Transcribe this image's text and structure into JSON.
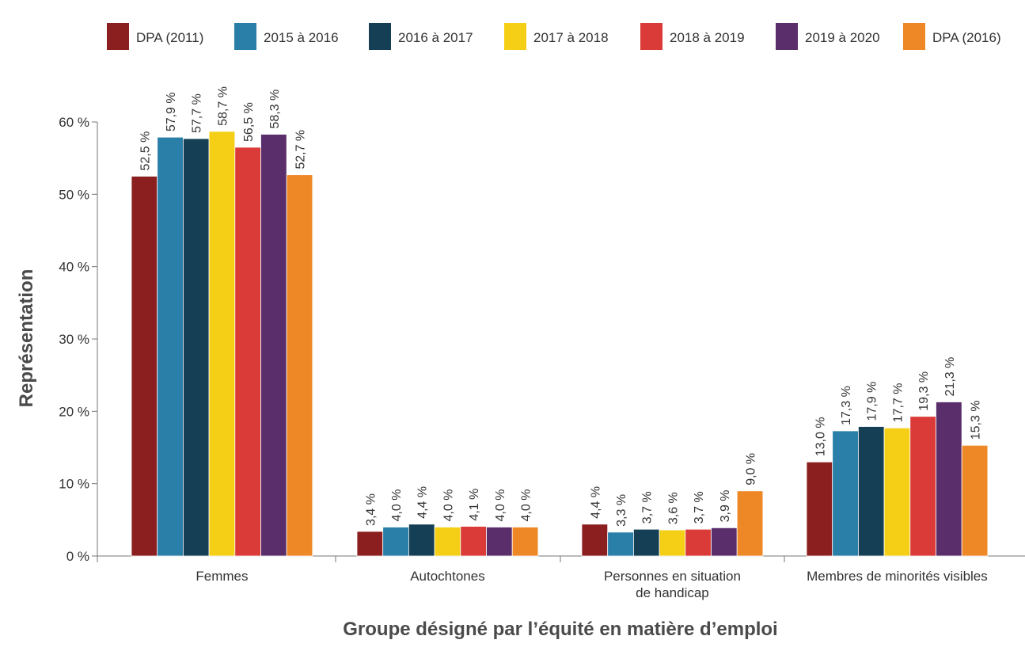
{
  "chart_data": {
    "type": "bar",
    "title": "",
    "xlabel": "Groupe désigné par l’équité en matière d’emploi",
    "ylabel": "Représentation",
    "ylim": [
      0,
      60
    ],
    "yticks": [
      0,
      10,
      20,
      30,
      40,
      50,
      60
    ],
    "ytick_labels": [
      "0 %",
      "10 %",
      "20 %",
      "30 %",
      "40 %",
      "50 %",
      "60 %"
    ],
    "grid": false,
    "legend_position": "top",
    "categories": [
      [
        "Femmes"
      ],
      [
        "Autochtones"
      ],
      [
        "Personnes en situation",
        "de handicap"
      ],
      [
        "Membres de minorités visibles"
      ]
    ],
    "series": [
      {
        "name": "DPA (2011)",
        "color": "#8b1e1e",
        "values": [
          52.5,
          3.4,
          4.4,
          13.0
        ],
        "labels": [
          "52,5 %",
          "3,4 %",
          "4,4 %",
          "13,0 %"
        ]
      },
      {
        "name": "2015 à 2016",
        "color": "#2a7fa9",
        "values": [
          57.9,
          4.0,
          3.3,
          17.3
        ],
        "labels": [
          "57,9 %",
          "4,0 %",
          "3,3 %",
          "17,3 %"
        ]
      },
      {
        "name": "2016 à 2017",
        "color": "#143f55",
        "values": [
          57.7,
          4.4,
          3.7,
          17.9
        ],
        "labels": [
          "57,7 %",
          "4,4 %",
          "3,7 %",
          "17,9 %"
        ]
      },
      {
        "name": "2017 à 2018",
        "color": "#f4cf16",
        "values": [
          58.7,
          4.0,
          3.6,
          17.7
        ],
        "labels": [
          "58,7 %",
          "4,0 %",
          "3,6 %",
          "17,7 %"
        ]
      },
      {
        "name": "2018 à 2019",
        "color": "#da3b38",
        "values": [
          56.5,
          4.1,
          3.7,
          19.3
        ],
        "labels": [
          "56,5 %",
          "4,1 %",
          "3,7 %",
          "19,3 %"
        ]
      },
      {
        "name": "2019 à 2020",
        "color": "#5a2d6b",
        "values": [
          58.3,
          4.0,
          3.9,
          21.3
        ],
        "labels": [
          "58,3 %",
          "4,0 %",
          "3,9 %",
          "21,3 %"
        ]
      },
      {
        "name": "DPA (2016)",
        "color": "#ee8726",
        "values": [
          52.7,
          4.0,
          9.0,
          15.3
        ],
        "labels": [
          "52,7 %",
          "4,0 %",
          "9,0 %",
          "15,3 %"
        ]
      }
    ]
  }
}
